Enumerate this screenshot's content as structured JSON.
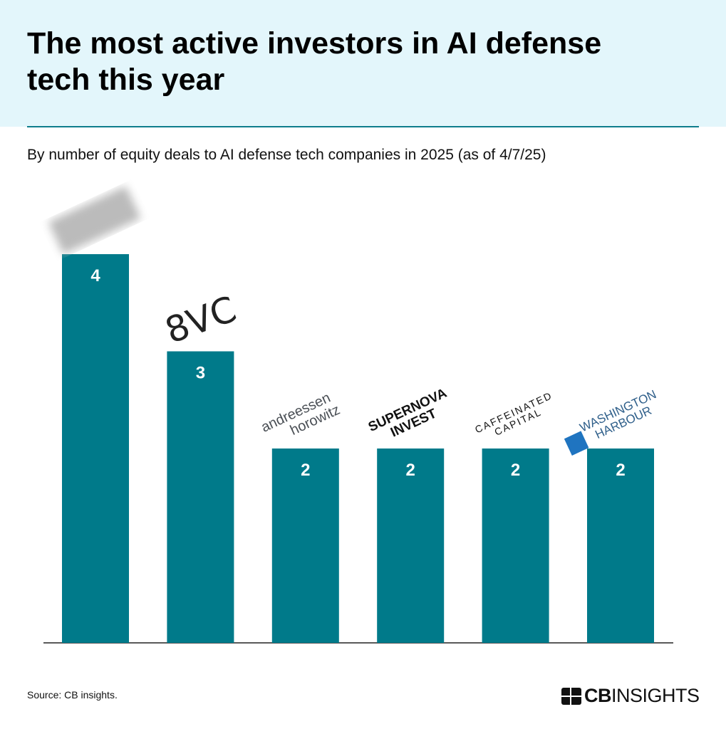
{
  "title": "The most active investors in AI defense tech this year",
  "subtitle": "By number of equity deals to AI defense tech companies in 2025 (as of 4/7/25)",
  "source": "Source: CB insights.",
  "brand": {
    "bold": "CB",
    "light": "INSIGHTS"
  },
  "colors": {
    "bar": "#007a8a",
    "header_bg": "#e3f6fb",
    "rule": "#0e7d8c"
  },
  "chart_data": {
    "type": "bar",
    "categories": [
      "",
      "8VC",
      "andreessen horowitz",
      "SUPERNOVA INVEST",
      "CAFFEINATED CAPITAL",
      "WASHINGTON HARBOUR"
    ],
    "values": [
      4,
      3,
      2,
      2,
      2,
      2
    ],
    "data_labels": [
      "4",
      "3",
      "2",
      "2",
      "2",
      "2"
    ],
    "ylim": [
      0,
      4
    ],
    "grid": false,
    "category_labels_as_logos": true
  }
}
